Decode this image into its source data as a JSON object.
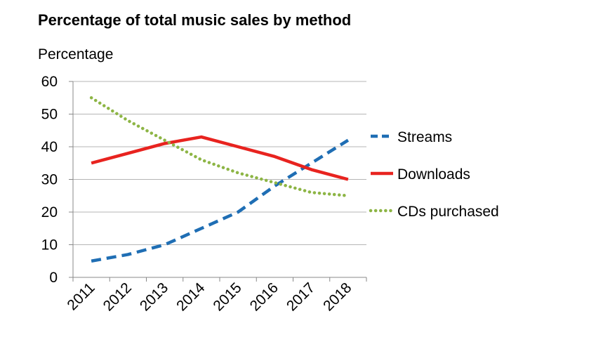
{
  "chart_data": {
    "type": "line",
    "title": "Percentage of total music sales by method",
    "ylabel": "Percentage",
    "xlabel": "",
    "categories": [
      "2011",
      "2012",
      "2013",
      "2014",
      "2015",
      "2016",
      "2017",
      "2018"
    ],
    "ylim": [
      0,
      60
    ],
    "yticks": [
      0,
      10,
      20,
      30,
      40,
      50,
      60
    ],
    "grid": "horizontal",
    "legend_position": "right",
    "series": [
      {
        "name": "Streams",
        "values": [
          5,
          7,
          10,
          15,
          20,
          28,
          35,
          42
        ],
        "color": "#1f6eb4",
        "style": "dashed"
      },
      {
        "name": "Downloads",
        "values": [
          35,
          38,
          41,
          43,
          40,
          37,
          33,
          30
        ],
        "color": "#e8231f",
        "style": "solid"
      },
      {
        "name": "CDs purchased",
        "values": [
          55,
          48,
          42,
          36,
          32,
          29,
          26,
          25
        ],
        "color": "#8db545",
        "style": "dotted"
      }
    ]
  }
}
